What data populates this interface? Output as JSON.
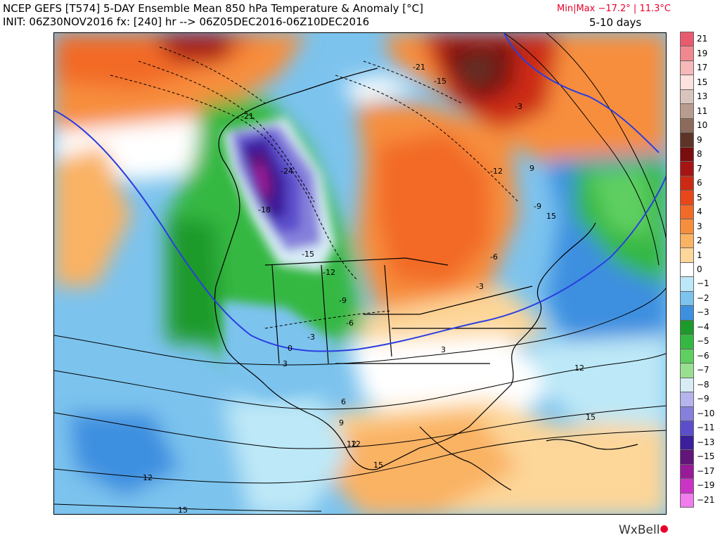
{
  "header": {
    "title": "NCEP GEFS [T574] 5-DAY Ensemble Mean 850 hPa Temperature & Anomaly [°C]",
    "init": "INIT: 06Z30NOV2016 fx: [240] hr --> 06Z05DEC2016-06Z10DEC2016",
    "minmax": "Min|Max −17.2° | 11.3°C",
    "period": "5-10 days"
  },
  "legend": {
    "items": [
      {
        "label": "21",
        "color": "#ea5a6e"
      },
      {
        "label": "19",
        "color": "#f08890"
      },
      {
        "label": "17",
        "color": "#f6b8b8"
      },
      {
        "label": "15",
        "color": "#fbe2de"
      },
      {
        "label": "13",
        "color": "#d9c4bc"
      },
      {
        "label": "11",
        "color": "#b89c90"
      },
      {
        "label": "10",
        "color": "#8c6a5c"
      },
      {
        "label": "9",
        "color": "#5e3328"
      },
      {
        "label": "8",
        "color": "#7a0d0d"
      },
      {
        "label": "7",
        "color": "#a61414"
      },
      {
        "label": "6",
        "color": "#cc2a12"
      },
      {
        "label": "5",
        "color": "#e8471a"
      },
      {
        "label": "4",
        "color": "#f26a28"
      },
      {
        "label": "3",
        "color": "#f78e3c"
      },
      {
        "label": "2",
        "color": "#fab263"
      },
      {
        "label": "1",
        "color": "#fdd699"
      },
      {
        "label": "0",
        "color": "#ffffff"
      },
      {
        "label": "−1",
        "color": "#bde8f7"
      },
      {
        "label": "−2",
        "color": "#7cc3ee"
      },
      {
        "label": "−3",
        "color": "#3d8fe0"
      },
      {
        "label": "−4",
        "color": "#1c9a2a"
      },
      {
        "label": "−5",
        "color": "#35b843"
      },
      {
        "label": "−6",
        "color": "#5fcf62"
      },
      {
        "label": "−7",
        "color": "#98e090"
      },
      {
        "label": "−8",
        "color": "#d8ecf6"
      },
      {
        "label": "−9",
        "color": "#b6b4ec"
      },
      {
        "label": "−10",
        "color": "#8680dc"
      },
      {
        "label": "−11",
        "color": "#5c4ecb"
      },
      {
        "label": "−13",
        "color": "#3c1f9c"
      },
      {
        "label": "−15",
        "color": "#62157a"
      },
      {
        "label": "−17",
        "color": "#981a98"
      },
      {
        "label": "−19",
        "color": "#cb33c6"
      },
      {
        "label": "−21",
        "color": "#f07cee"
      }
    ]
  },
  "contour_labels": [
    "-21",
    "-24",
    "-18",
    "-15",
    "-12",
    "-9",
    "-6",
    "-3",
    "0",
    "3",
    "6",
    "9",
    "12",
    "15",
    "-21",
    "-15",
    "-3",
    "-12",
    "-9",
    "-6",
    "-3",
    "3",
    "12",
    "15",
    "9",
    "12",
    "15",
    "12",
    "15"
  ],
  "credit": {
    "brand": "WxBell"
  }
}
